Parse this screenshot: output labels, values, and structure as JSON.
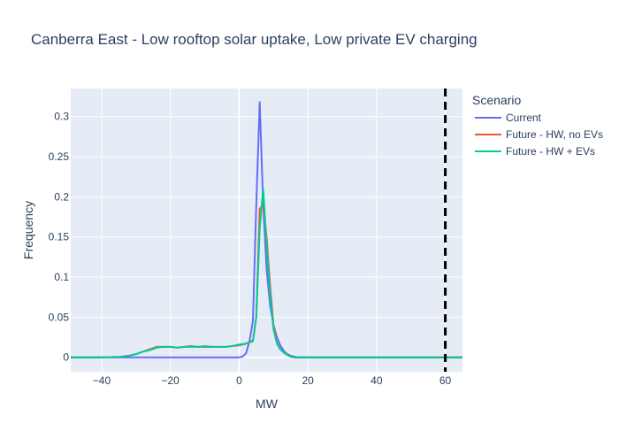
{
  "chart_data": {
    "type": "line",
    "title": "Canberra East - Low rooftop solar uptake, Low private EV charging",
    "xlabel": "MW",
    "ylabel": "Frequency",
    "xlim": [
      -49,
      65
    ],
    "ylim": [
      -0.018,
      0.335
    ],
    "x_ticks": [
      -40,
      -20,
      0,
      20,
      40,
      60
    ],
    "x_tick_labels": [
      "−40",
      "−20",
      "0",
      "20",
      "40",
      "60"
    ],
    "y_ticks": [
      0,
      0.05,
      0.1,
      0.15,
      0.2,
      0.25,
      0.3
    ],
    "y_tick_labels": [
      "0",
      "0.05",
      "0.1",
      "0.15",
      "0.2",
      "0.25",
      "0.3"
    ],
    "grid": true,
    "legend": {
      "title": "Scenario",
      "placement": "right"
    },
    "reference_line": {
      "x": 60,
      "style": "dashed",
      "color": "#000000"
    },
    "plot_background": "#e5ecf6",
    "series": [
      {
        "name": "Current",
        "color": "#636efa",
        "x": [
          -49,
          0,
          1,
          2,
          3,
          4,
          5,
          6,
          7,
          8,
          9,
          10,
          11,
          12,
          13,
          14,
          15,
          16,
          17,
          65
        ],
        "y": [
          0,
          0,
          0.001,
          0.005,
          0.02,
          0.045,
          0.19,
          0.318,
          0.19,
          0.11,
          0.065,
          0.04,
          0.025,
          0.015,
          0.008,
          0.004,
          0.002,
          0.001,
          0,
          0
        ]
      },
      {
        "name": "Future - HW, no EVs",
        "color": "#ef553b",
        "x": [
          -49,
          -40,
          -35,
          -32,
          -30,
          -28,
          -26,
          -24,
          -22,
          -20,
          -18,
          -16,
          -14,
          -12,
          -10,
          -8,
          -6,
          -4,
          -2,
          0,
          2,
          4,
          5,
          6,
          7,
          8,
          9,
          10,
          11,
          12,
          13,
          14,
          15,
          16,
          17,
          65
        ],
        "y": [
          0,
          0,
          0.0005,
          0.002,
          0.004,
          0.007,
          0.01,
          0.013,
          0.013,
          0.013,
          0.012,
          0.013,
          0.014,
          0.013,
          0.013,
          0.013,
          0.013,
          0.013,
          0.014,
          0.015,
          0.017,
          0.021,
          0.05,
          0.185,
          0.19,
          0.15,
          0.09,
          0.04,
          0.018,
          0.01,
          0.006,
          0.003,
          0.001,
          0,
          0,
          0
        ]
      },
      {
        "name": "Future - HW + EVs",
        "color": "#00cc96",
        "x": [
          -49,
          -40,
          -35,
          -32,
          -30,
          -28,
          -26,
          -24,
          -22,
          -20,
          -18,
          -16,
          -14,
          -12,
          -10,
          -8,
          -6,
          -4,
          -2,
          0,
          2,
          4,
          5,
          6,
          7,
          8,
          9,
          10,
          11,
          12,
          13,
          14,
          15,
          16,
          17,
          65
        ],
        "y": [
          0,
          0,
          0.0005,
          0.002,
          0.004,
          0.007,
          0.009,
          0.012,
          0.013,
          0.013,
          0.012,
          0.013,
          0.013,
          0.013,
          0.014,
          0.013,
          0.013,
          0.013,
          0.014,
          0.016,
          0.017,
          0.02,
          0.05,
          0.16,
          0.21,
          0.14,
          0.08,
          0.035,
          0.017,
          0.01,
          0.006,
          0.003,
          0.001,
          0,
          0,
          0
        ]
      }
    ]
  }
}
